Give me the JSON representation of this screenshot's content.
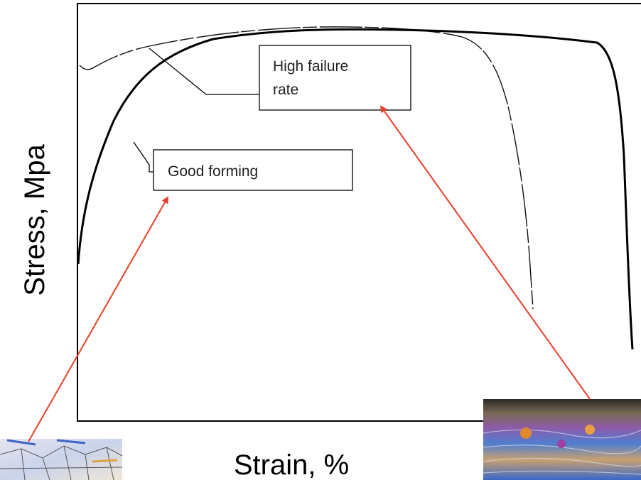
{
  "axes": {
    "x_label": "Strain, %",
    "y_label": "Stress, Mpa"
  },
  "callouts": {
    "high_failure": [
      "High failure",
      "rate"
    ],
    "good_forming": "Good forming"
  }
}
